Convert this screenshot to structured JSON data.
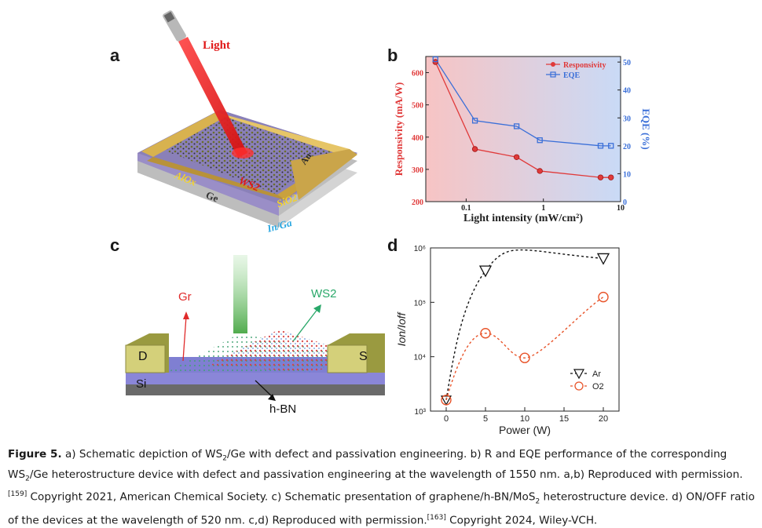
{
  "panels": {
    "a": "a",
    "b": "b",
    "c": "c",
    "d": "d"
  },
  "panel_a": {
    "light": "Light",
    "au": "Au",
    "alox": "AlOx",
    "ws2": "WS2",
    "ge": "Ge",
    "sio2": "SiO2",
    "inga": "In/Ga"
  },
  "panel_c": {
    "gr": "Gr",
    "ws2": "WS2",
    "d": "D",
    "s": "S",
    "si": "Si",
    "hbn": "h-BN"
  },
  "colors": {
    "responsivity": "#e03a3a",
    "eqe": "#3a6fd8",
    "ar": "#111111",
    "o2": "#e8542a",
    "laser": "#e01818",
    "gold": "#c9a13e"
  },
  "chart_data": [
    {
      "type": "line",
      "panel": "b",
      "xlabel": "Light intensity (mW/cm²)",
      "ylabel": "Responsivity (mA/W)",
      "y2label": "EQE (%)",
      "xscale": "log",
      "xlim": [
        0.03,
        10
      ],
      "ylim": [
        200,
        650
      ],
      "y2lim": [
        0,
        52
      ],
      "x_ticks": [
        "0.1",
        "1",
        "10"
      ],
      "y_ticks": [
        "200",
        "300",
        "400",
        "500",
        "600"
      ],
      "y2_ticks": [
        "0",
        "10",
        "20",
        "30",
        "40",
        "50"
      ],
      "legend": "top-right",
      "series": [
        {
          "name": "Responsivity",
          "axis": "left",
          "x": [
            0.04,
            0.13,
            0.45,
            0.9,
            5.5,
            7.5
          ],
          "values": [
            633,
            363,
            338,
            295,
            275,
            275
          ]
        },
        {
          "name": "EQE",
          "axis": "right",
          "x": [
            0.04,
            0.13,
            0.45,
            0.9,
            5.5,
            7.5
          ],
          "values": [
            51,
            29,
            27,
            22,
            20,
            20
          ]
        }
      ]
    },
    {
      "type": "line",
      "panel": "d",
      "xlabel": "Power (W)",
      "ylabel": "Ion/Ioff",
      "yscale": "log",
      "xlim": [
        -2,
        22
      ],
      "ylim": [
        1000,
        1000000
      ],
      "x_ticks": [
        "0",
        "5",
        "10",
        "15",
        "20"
      ],
      "y_ticks": [
        "10³",
        "10⁴",
        "10⁵",
        "10⁶"
      ],
      "legend": "bottom-right",
      "series": [
        {
          "name": "Ar",
          "x": [
            0,
            5,
            20
          ],
          "values": [
            1600,
            380000,
            640000
          ]
        },
        {
          "name": "O2",
          "x": [
            0,
            5,
            10,
            20
          ],
          "values": [
            1600,
            27000,
            9500,
            125000
          ]
        }
      ]
    }
  ],
  "caption": {
    "fig": "Figure 5.",
    "p1": " a) Schematic depiction of WS",
    "p2": "/Ge with defect and passivation engineering. b) R and EQE performance of the corresponding WS",
    "p3": "/Ge heterostructure device with defect and passivation engineering at the wavelength of 1550 nm. a,b) Reproduced with permission.",
    "ref1": "[159]",
    "p4": " Copyright 2021, American Chemical Society. c) Schematic presentation of graphene/h-BN/MoS",
    "p5": " heterostructure device. d) ON/OFF ratio of the devices at the wavelength of 520 nm. c,d) Reproduced with permission.",
    "ref2": "[163]",
    "p6": " Copyright 2024, Wiley-VCH.",
    "sub2": "2"
  }
}
